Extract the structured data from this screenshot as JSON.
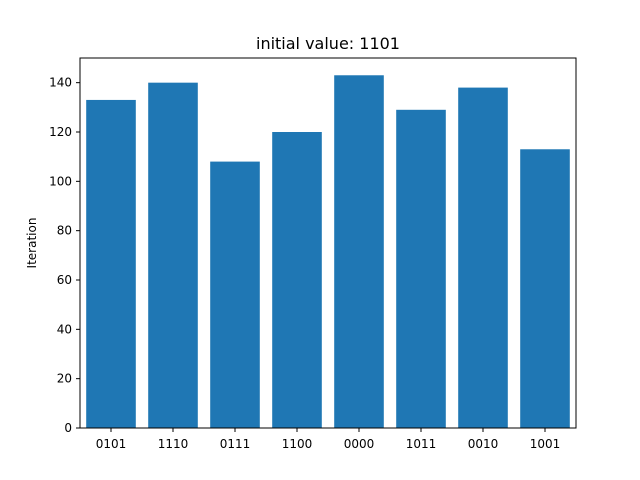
{
  "chart_data": {
    "type": "bar",
    "title": "initial value: 1101",
    "xlabel": "",
    "ylabel": "Iteration",
    "categories": [
      "0101",
      "1110",
      "0111",
      "1100",
      "0000",
      "1011",
      "0010",
      "1001"
    ],
    "values": [
      133,
      140,
      108,
      120,
      143,
      129,
      138,
      113
    ],
    "ylim": [
      0,
      150
    ],
    "yticks": [
      0,
      20,
      40,
      60,
      80,
      100,
      120,
      140
    ],
    "bar_color": "#1f77b4",
    "grid": false,
    "legend": "none"
  }
}
